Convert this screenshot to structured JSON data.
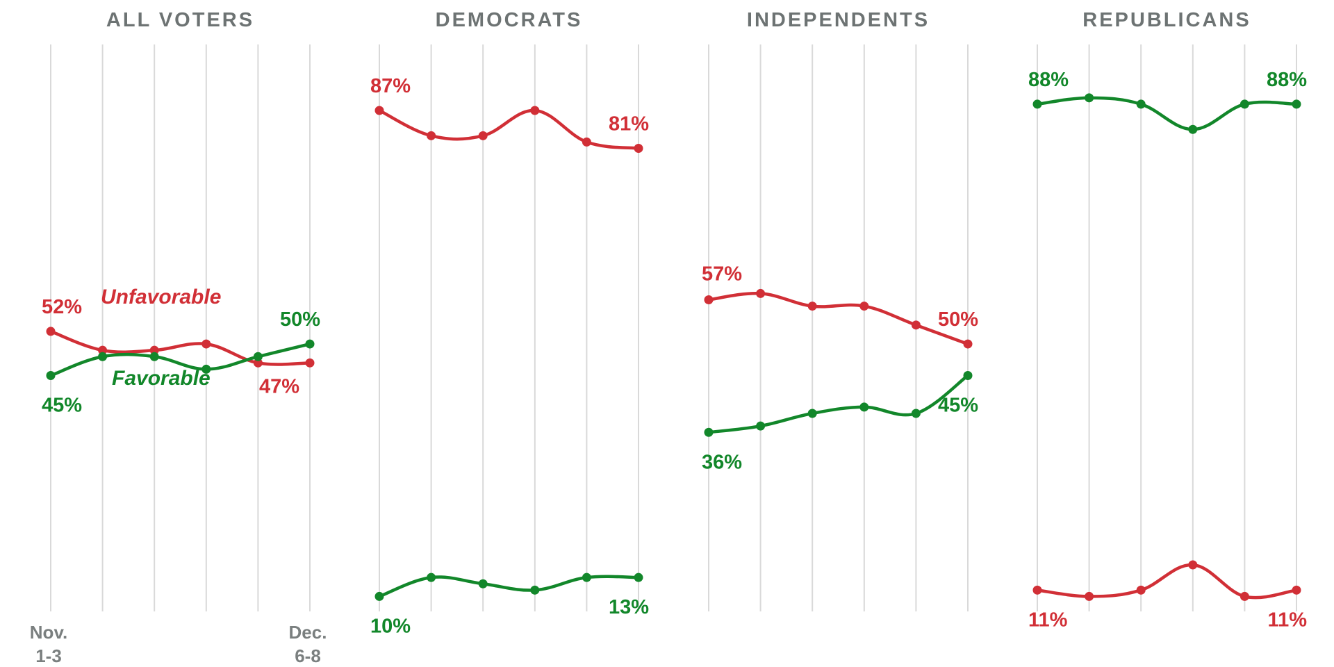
{
  "colors": {
    "unfavorable": "#d12f36",
    "favorable": "#12872a",
    "title": "#6d7373",
    "grid": "#d9d9d9",
    "axis_text": "#7a7f7f"
  },
  "x_axis": {
    "start_label": [
      "Nov.",
      "1-3"
    ],
    "end_label": [
      "Dec.",
      "6-8"
    ]
  },
  "annotations": {
    "unfavorable": "Unfavorable",
    "favorable": "Favorable"
  },
  "chart_data": [
    {
      "type": "line",
      "title": "ALL VOTERS",
      "x_points": 6,
      "ylim": [
        0,
        100
      ],
      "series": [
        {
          "name": "Unfavorable",
          "values": [
            52,
            49,
            49,
            50,
            47,
            47
          ],
          "labels": [
            "52%",
            "47%"
          ]
        },
        {
          "name": "Favorable",
          "values": [
            45,
            48,
            48,
            46,
            48,
            50
          ],
          "labels": [
            "45%",
            "50%"
          ]
        }
      ]
    },
    {
      "type": "line",
      "title": "DEMOCRATS",
      "x_points": 6,
      "ylim": [
        0,
        100
      ],
      "series": [
        {
          "name": "Unfavorable",
          "values": [
            87,
            83,
            83,
            87,
            82,
            81
          ],
          "labels": [
            "87%",
            "81%"
          ]
        },
        {
          "name": "Favorable",
          "values": [
            10,
            13,
            12,
            11,
            13,
            13
          ],
          "labels": [
            "10%",
            "13%"
          ]
        }
      ]
    },
    {
      "type": "line",
      "title": "INDEPENDENTS",
      "x_points": 6,
      "ylim": [
        0,
        100
      ],
      "series": [
        {
          "name": "Unfavorable",
          "values": [
            57,
            58,
            56,
            56,
            53,
            50
          ],
          "labels": [
            "57%",
            "50%"
          ]
        },
        {
          "name": "Favorable",
          "values": [
            36,
            37,
            39,
            40,
            39,
            45
          ],
          "labels": [
            "36%",
            "45%"
          ]
        }
      ]
    },
    {
      "type": "line",
      "title": "REPUBLICANS",
      "x_points": 6,
      "ylim": [
        0,
        100
      ],
      "series": [
        {
          "name": "Favorable",
          "values": [
            88,
            89,
            88,
            84,
            88,
            88
          ],
          "labels": [
            "88%",
            "88%"
          ]
        },
        {
          "name": "Unfavorable",
          "values": [
            11,
            10,
            11,
            15,
            10,
            11
          ],
          "labels": [
            "11%",
            "11%"
          ]
        }
      ]
    }
  ]
}
